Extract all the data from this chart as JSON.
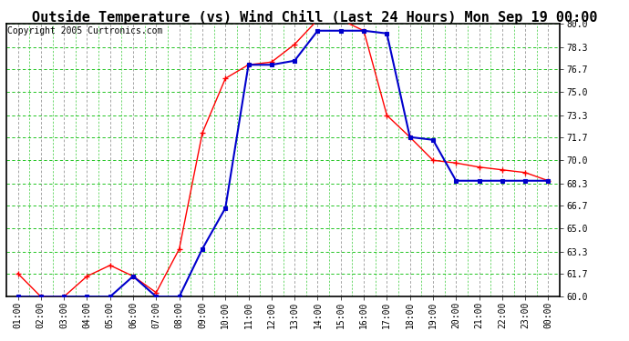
{
  "title": "Outside Temperature (vs) Wind Chill (Last 24 Hours) Mon Sep 19 00:00",
  "copyright": "Copyright 2005 Curtronics.com",
  "x_labels": [
    "01:00",
    "02:00",
    "03:00",
    "04:00",
    "05:00",
    "06:00",
    "07:00",
    "08:00",
    "09:00",
    "10:00",
    "11:00",
    "12:00",
    "13:00",
    "14:00",
    "15:00",
    "16:00",
    "17:00",
    "18:00",
    "19:00",
    "20:00",
    "21:00",
    "22:00",
    "23:00",
    "00:00"
  ],
  "outside_temp": [
    61.7,
    60.0,
    60.0,
    61.5,
    62.3,
    61.5,
    60.3,
    63.5,
    72.0,
    76.0,
    77.0,
    77.2,
    78.5,
    80.3,
    80.3,
    79.5,
    73.3,
    71.7,
    70.0,
    69.8,
    69.5,
    69.3,
    69.1,
    68.5
  ],
  "wind_chill": [
    60.0,
    60.0,
    60.0,
    60.0,
    60.0,
    61.5,
    60.0,
    60.0,
    63.5,
    66.5,
    77.0,
    77.0,
    77.3,
    79.5,
    79.5,
    79.5,
    79.3,
    71.7,
    71.5,
    68.5,
    68.5,
    68.5,
    68.5,
    68.5
  ],
  "temp_color": "#ff0000",
  "chill_color": "#0000cc",
  "bg_color": "#ffffff",
  "plot_bg": "#ffffff",
  "grid_gray_color": "#808080",
  "grid_green_color": "#00bb00",
  "ylim": [
    60.0,
    80.0
  ],
  "yticks": [
    60.0,
    61.7,
    63.3,
    65.0,
    66.7,
    68.3,
    70.0,
    71.7,
    73.3,
    75.0,
    76.7,
    78.3,
    80.0
  ],
  "title_fontsize": 11,
  "copyright_fontsize": 7,
  "tick_fontsize": 7
}
